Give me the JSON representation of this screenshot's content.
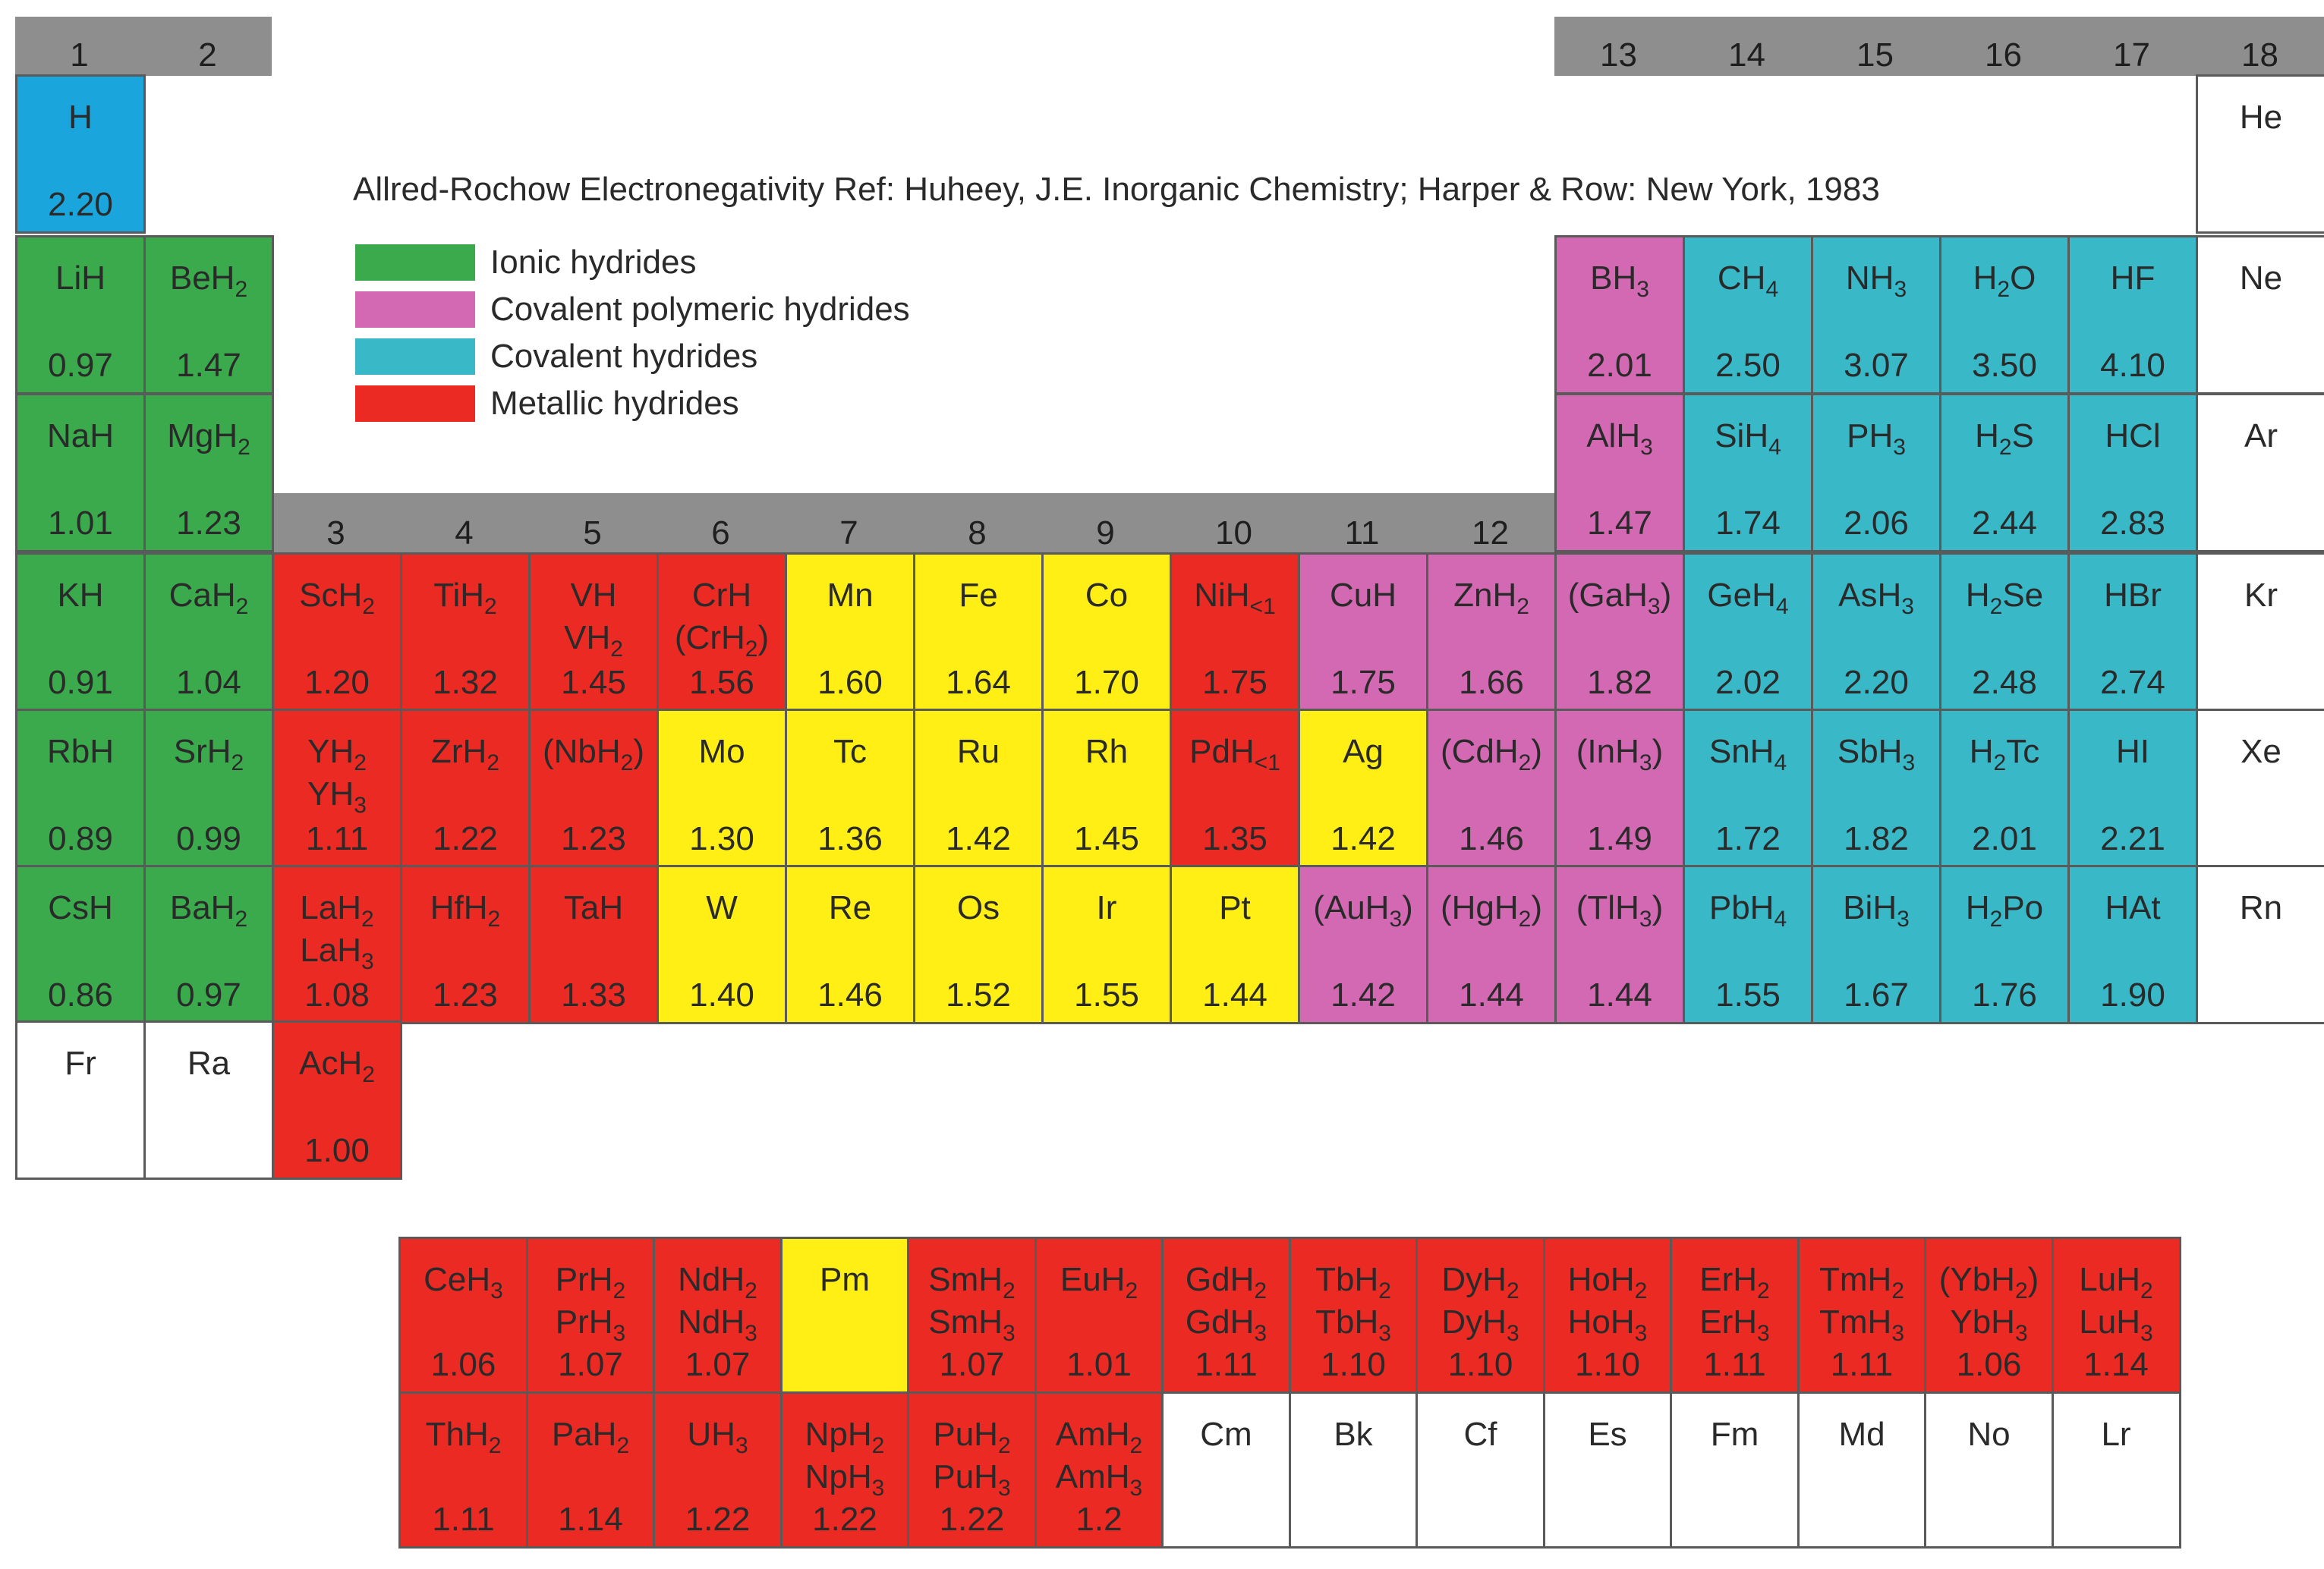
{
  "reference": "Allred-Rochow Electronegativity Ref: Huheey, J.E. Inorganic Chemistry; Harper & Row: New York, 1983",
  "legend": [
    {
      "key": "ionic",
      "label": "Ionic hydrides",
      "color": "#3aaa4c"
    },
    {
      "key": "polymeric",
      "label": "Covalent polymeric hydrides",
      "color": "#d469b3"
    },
    {
      "key": "covalent",
      "label": "Covalent hydrides",
      "color": "#39b8c8"
    },
    {
      "key": "metallic",
      "label": "Metallic hydrides",
      "color": "#ec2a24"
    }
  ],
  "colors": {
    "ionic": "#3aaa4c",
    "polymeric": "#d469b3",
    "covalent": "#39b8c8",
    "covalent_h": "#1aa6dc",
    "metallic": "#ec2a24",
    "no_hydride": "#ffef14",
    "blank": "#ffffff",
    "group_header": "#8e8e8e"
  },
  "group_numbers": [
    "1",
    "2",
    "3",
    "4",
    "5",
    "6",
    "7",
    "8",
    "9",
    "10",
    "11",
    "12",
    "13",
    "14",
    "15",
    "16",
    "17",
    "18"
  ],
  "cells": [
    {
      "g": 1,
      "r": 1,
      "type": "covalent_h",
      "f": "H",
      "en": "2.20"
    },
    {
      "g": 18,
      "r": 1,
      "type": "blank",
      "f": "He",
      "en": ""
    },
    {
      "g": 1,
      "r": 2,
      "type": "ionic",
      "f": "LiH",
      "en": "0.97"
    },
    {
      "g": 2,
      "r": 2,
      "type": "ionic",
      "f": "BeH_2",
      "en": "1.47"
    },
    {
      "g": 13,
      "r": 2,
      "type": "polymeric",
      "f": "BH_3",
      "en": "2.01"
    },
    {
      "g": 14,
      "r": 2,
      "type": "covalent",
      "f": "CH_4",
      "en": "2.50"
    },
    {
      "g": 15,
      "r": 2,
      "type": "covalent",
      "f": "NH_3",
      "en": "3.07"
    },
    {
      "g": 16,
      "r": 2,
      "type": "covalent",
      "f": "H_2O",
      "en": "3.50"
    },
    {
      "g": 17,
      "r": 2,
      "type": "covalent",
      "f": "HF",
      "en": "4.10"
    },
    {
      "g": 18,
      "r": 2,
      "type": "blank",
      "f": "Ne",
      "en": ""
    },
    {
      "g": 1,
      "r": 3,
      "type": "ionic",
      "f": "NaH",
      "en": "1.01"
    },
    {
      "g": 2,
      "r": 3,
      "type": "ionic",
      "f": "MgH_2",
      "en": "1.23"
    },
    {
      "g": 13,
      "r": 3,
      "type": "polymeric",
      "f": "AlH_3",
      "en": "1.47"
    },
    {
      "g": 14,
      "r": 3,
      "type": "covalent",
      "f": "SiH_4",
      "en": "1.74"
    },
    {
      "g": 15,
      "r": 3,
      "type": "covalent",
      "f": "PH_3",
      "en": "2.06"
    },
    {
      "g": 16,
      "r": 3,
      "type": "covalent",
      "f": "H_2S",
      "en": "2.44"
    },
    {
      "g": 17,
      "r": 3,
      "type": "covalent",
      "f": "HCl",
      "en": "2.83"
    },
    {
      "g": 18,
      "r": 3,
      "type": "blank",
      "f": "Ar",
      "en": ""
    },
    {
      "g": 1,
      "r": 4,
      "type": "ionic",
      "f": "KH",
      "en": "0.91"
    },
    {
      "g": 2,
      "r": 4,
      "type": "ionic",
      "f": "CaH_2",
      "en": "1.04"
    },
    {
      "g": 3,
      "r": 4,
      "type": "metallic",
      "f": "ScH_2",
      "en": "1.20"
    },
    {
      "g": 4,
      "r": 4,
      "type": "metallic",
      "f": "TiH_2",
      "en": "1.32"
    },
    {
      "g": 5,
      "r": 4,
      "type": "metallic",
      "f": "VH|VH_2",
      "en": "1.45"
    },
    {
      "g": 6,
      "r": 4,
      "type": "metallic",
      "f": "CrH|(CrH_2)",
      "en": "1.56"
    },
    {
      "g": 7,
      "r": 4,
      "type": "no_hydride",
      "f": "Mn",
      "en": "1.60"
    },
    {
      "g": 8,
      "r": 4,
      "type": "no_hydride",
      "f": "Fe",
      "en": "1.64"
    },
    {
      "g": 9,
      "r": 4,
      "type": "no_hydride",
      "f": "Co",
      "en": "1.70"
    },
    {
      "g": 10,
      "r": 4,
      "type": "metallic",
      "f": "NiH_<1",
      "en": "1.75"
    },
    {
      "g": 11,
      "r": 4,
      "type": "polymeric",
      "f": "CuH",
      "en": "1.75"
    },
    {
      "g": 12,
      "r": 4,
      "type": "polymeric",
      "f": "ZnH_2",
      "en": "1.66"
    },
    {
      "g": 13,
      "r": 4,
      "type": "polymeric",
      "f": "(GaH_3)",
      "en": "1.82"
    },
    {
      "g": 14,
      "r": 4,
      "type": "covalent",
      "f": "GeH_4",
      "en": "2.02"
    },
    {
      "g": 15,
      "r": 4,
      "type": "covalent",
      "f": "AsH_3",
      "en": "2.20"
    },
    {
      "g": 16,
      "r": 4,
      "type": "covalent",
      "f": "H_2Se",
      "en": "2.48"
    },
    {
      "g": 17,
      "r": 4,
      "type": "covalent",
      "f": "HBr",
      "en": "2.74"
    },
    {
      "g": 18,
      "r": 4,
      "type": "blank",
      "f": "Kr",
      "en": ""
    },
    {
      "g": 1,
      "r": 5,
      "type": "ionic",
      "f": "RbH",
      "en": "0.89"
    },
    {
      "g": 2,
      "r": 5,
      "type": "ionic",
      "f": "SrH_2",
      "en": "0.99"
    },
    {
      "g": 3,
      "r": 5,
      "type": "metallic",
      "f": "YH_2|YH_3",
      "en": "1.11"
    },
    {
      "g": 4,
      "r": 5,
      "type": "metallic",
      "f": "ZrH_2",
      "en": "1.22"
    },
    {
      "g": 5,
      "r": 5,
      "type": "metallic",
      "f": "(NbH_2)",
      "en": "1.23"
    },
    {
      "g": 6,
      "r": 5,
      "type": "no_hydride",
      "f": "Mo",
      "en": "1.30"
    },
    {
      "g": 7,
      "r": 5,
      "type": "no_hydride",
      "f": "Tc",
      "en": "1.36"
    },
    {
      "g": 8,
      "r": 5,
      "type": "no_hydride",
      "f": "Ru",
      "en": "1.42"
    },
    {
      "g": 9,
      "r": 5,
      "type": "no_hydride",
      "f": "Rh",
      "en": "1.45"
    },
    {
      "g": 10,
      "r": 5,
      "type": "metallic",
      "f": "PdH_<1",
      "en": "1.35"
    },
    {
      "g": 11,
      "r": 5,
      "type": "no_hydride",
      "f": "Ag",
      "en": "1.42"
    },
    {
      "g": 12,
      "r": 5,
      "type": "polymeric",
      "f": "(CdH_2)",
      "en": "1.46"
    },
    {
      "g": 13,
      "r": 5,
      "type": "polymeric",
      "f": "(InH_3)",
      "en": "1.49"
    },
    {
      "g": 14,
      "r": 5,
      "type": "covalent",
      "f": "SnH_4",
      "en": "1.72"
    },
    {
      "g": 15,
      "r": 5,
      "type": "covalent",
      "f": "SbH_3",
      "en": "1.82"
    },
    {
      "g": 16,
      "r": 5,
      "type": "covalent",
      "f": "H_2Tc",
      "en": "2.01"
    },
    {
      "g": 17,
      "r": 5,
      "type": "covalent",
      "f": "HI",
      "en": "2.21"
    },
    {
      "g": 18,
      "r": 5,
      "type": "blank",
      "f": "Xe",
      "en": ""
    },
    {
      "g": 1,
      "r": 6,
      "type": "ionic",
      "f": "CsH",
      "en": "0.86"
    },
    {
      "g": 2,
      "r": 6,
      "type": "ionic",
      "f": "BaH_2",
      "en": "0.97"
    },
    {
      "g": 3,
      "r": 6,
      "type": "metallic",
      "f": "LaH_2|LaH_3",
      "en": "1.08"
    },
    {
      "g": 4,
      "r": 6,
      "type": "metallic",
      "f": "HfH_2",
      "en": "1.23"
    },
    {
      "g": 5,
      "r": 6,
      "type": "metallic",
      "f": "TaH",
      "en": "1.33"
    },
    {
      "g": 6,
      "r": 6,
      "type": "no_hydride",
      "f": "W",
      "en": "1.40"
    },
    {
      "g": 7,
      "r": 6,
      "type": "no_hydride",
      "f": "Re",
      "en": "1.46"
    },
    {
      "g": 8,
      "r": 6,
      "type": "no_hydride",
      "f": "Os",
      "en": "1.52"
    },
    {
      "g": 9,
      "r": 6,
      "type": "no_hydride",
      "f": "Ir",
      "en": "1.55"
    },
    {
      "g": 10,
      "r": 6,
      "type": "no_hydride",
      "f": "Pt",
      "en": "1.44"
    },
    {
      "g": 11,
      "r": 6,
      "type": "polymeric",
      "f": "(AuH_3)",
      "en": "1.42"
    },
    {
      "g": 12,
      "r": 6,
      "type": "polymeric",
      "f": "(HgH_2)",
      "en": "1.44"
    },
    {
      "g": 13,
      "r": 6,
      "type": "polymeric",
      "f": "(TlH_3)",
      "en": "1.44"
    },
    {
      "g": 14,
      "r": 6,
      "type": "covalent",
      "f": "PbH_4",
      "en": "1.55"
    },
    {
      "g": 15,
      "r": 6,
      "type": "covalent",
      "f": "BiH_3",
      "en": "1.67"
    },
    {
      "g": 16,
      "r": 6,
      "type": "covalent",
      "f": "H_2Po",
      "en": "1.76"
    },
    {
      "g": 17,
      "r": 6,
      "type": "covalent",
      "f": "HAt",
      "en": "1.90"
    },
    {
      "g": 18,
      "r": 6,
      "type": "blank",
      "f": "Rn",
      "en": ""
    },
    {
      "g": 1,
      "r": 7,
      "type": "blank",
      "f": "Fr",
      "en": ""
    },
    {
      "g": 2,
      "r": 7,
      "type": "blank",
      "f": "Ra",
      "en": ""
    },
    {
      "g": 3,
      "r": 7,
      "type": "metallic",
      "f": "AcH_2",
      "en": "1.00"
    }
  ],
  "lanthanides": [
    {
      "type": "metallic",
      "f": "CeH_3",
      "en": "1.06"
    },
    {
      "type": "metallic",
      "f": "PrH_2|PrH_3",
      "en": "1.07"
    },
    {
      "type": "metallic",
      "f": "NdH_2|NdH_3",
      "en": "1.07"
    },
    {
      "type": "no_hydride",
      "f": "Pm",
      "en": ""
    },
    {
      "type": "metallic",
      "f": "SmH_2|SmH_3",
      "en": "1.07"
    },
    {
      "type": "metallic",
      "f": "EuH_2",
      "en": "1.01"
    },
    {
      "type": "metallic",
      "f": "GdH_2|GdH_3",
      "en": "1.11"
    },
    {
      "type": "metallic",
      "f": "TbH_2|TbH_3",
      "en": "1.10"
    },
    {
      "type": "metallic",
      "f": "DyH_2|DyH_3",
      "en": "1.10"
    },
    {
      "type": "metallic",
      "f": "HoH_2|HoH_3",
      "en": "1.10"
    },
    {
      "type": "metallic",
      "f": "ErH_2|ErH_3",
      "en": "1.11"
    },
    {
      "type": "metallic",
      "f": "TmH_2|TmH_3",
      "en": "1.11"
    },
    {
      "type": "metallic",
      "f": "(YbH_2)|YbH_3",
      "en": "1.06"
    },
    {
      "type": "metallic",
      "f": "LuH_2|LuH_3",
      "en": "1.14"
    }
  ],
  "actinides": [
    {
      "type": "metallic",
      "f": "ThH_2",
      "en": "1.11"
    },
    {
      "type": "metallic",
      "f": "PaH_2",
      "en": "1.14"
    },
    {
      "type": "metallic",
      "f": "UH_3",
      "en": "1.22"
    },
    {
      "type": "metallic",
      "f": "NpH_2|NpH_3",
      "en": "1.22"
    },
    {
      "type": "metallic",
      "f": "PuH_2|PuH_3",
      "en": "1.22"
    },
    {
      "type": "metallic",
      "f": "AmH_2|AmH_3",
      "en": "1.2"
    },
    {
      "type": "blank",
      "f": "Cm",
      "en": ""
    },
    {
      "type": "blank",
      "f": "Bk",
      "en": ""
    },
    {
      "type": "blank",
      "f": "Cf",
      "en": ""
    },
    {
      "type": "blank",
      "f": "Es",
      "en": ""
    },
    {
      "type": "blank",
      "f": "Fm",
      "en": ""
    },
    {
      "type": "blank",
      "f": "Md",
      "en": ""
    },
    {
      "type": "blank",
      "f": "No",
      "en": ""
    },
    {
      "type": "blank",
      "f": "Lr",
      "en": ""
    }
  ]
}
